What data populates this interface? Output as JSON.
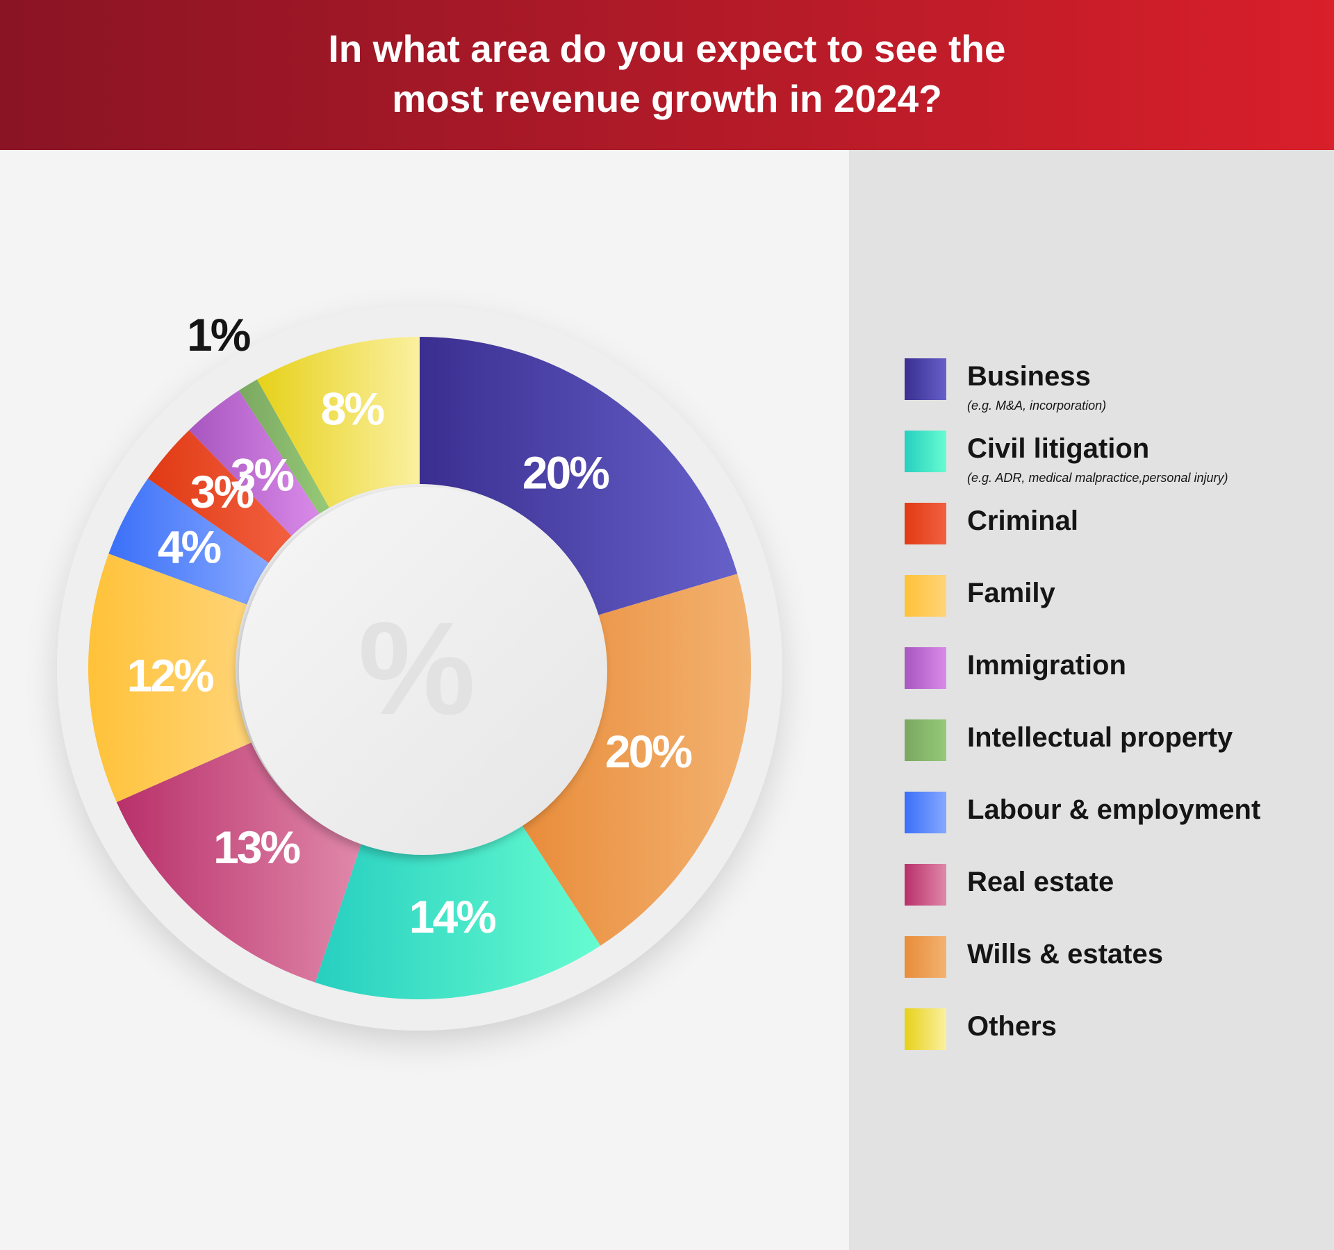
{
  "header": {
    "title_line1": "In what area do you expect to see the",
    "title_line2": "most revenue growth in 2024?"
  },
  "center_symbol": "%",
  "chart_data": {
    "type": "pie",
    "donut": true,
    "title": "In what area do you expect to see the most revenue growth in 2024?",
    "legend_position": "right",
    "slices": [
      {
        "name": "Business",
        "note": "(e.g. M&A, incorporation)",
        "value": 20,
        "label": "20%",
        "color_start": "#3a2e90",
        "color_end": "#6660c9",
        "label_color": "#ffffff"
      },
      {
        "name": "Wills & estates",
        "value": 20,
        "label": "20%",
        "color_start": "#e88c3a",
        "color_end": "#f3b270",
        "label_color": "#ffffff"
      },
      {
        "name": "Civil litigation",
        "note": "(e.g. ADR, medical malpractice,personal injury)",
        "value": 14,
        "label": "14%",
        "color_start": "#27cfc0",
        "color_end": "#66fcd0",
        "label_color": "#ffffff"
      },
      {
        "name": "Real estate",
        "value": 13,
        "label": "13%",
        "color_start": "#b8306a",
        "color_end": "#e088aa",
        "label_color": "#ffffff"
      },
      {
        "name": "Family",
        "value": 12,
        "label": "12%",
        "color_start": "#ffc238",
        "color_end": "#ffd478",
        "label_color": "#ffffff"
      },
      {
        "name": "Labour & employment",
        "value": 4,
        "label": "4%",
        "color_start": "#3a6ff8",
        "color_end": "#86a8ff",
        "label_color": "#ffffff"
      },
      {
        "name": "Criminal",
        "value": 3,
        "label": "3%",
        "color_start": "#e03a14",
        "color_end": "#f26040",
        "label_color": "#ffffff"
      },
      {
        "name": "Immigration",
        "value": 3,
        "label": "3%",
        "color_start": "#a856c0",
        "color_end": "#d98ae8",
        "label_color": "#ffffff"
      },
      {
        "name": "Intellectual property",
        "value": 1,
        "label": "1%",
        "color_start": "#7aa860",
        "color_end": "#96c978",
        "label_color": "#151515"
      },
      {
        "name": "Others",
        "value": 8,
        "label": "8%",
        "color_start": "#e6d11a",
        "color_end": "#fbf0a0",
        "label_color": "#ffffff"
      }
    ]
  },
  "legend": {
    "items": [
      {
        "label": "Business",
        "note": "(e.g. M&A, incorporation)",
        "color_start": "#3a2e90",
        "color_end": "#6660c9"
      },
      {
        "label": "Civil litigation",
        "note": "(e.g. ADR, medical malpractice,personal injury)",
        "color_start": "#27cfc0",
        "color_end": "#66fcd0"
      },
      {
        "label": "Criminal",
        "color_start": "#e03a14",
        "color_end": "#f26040"
      },
      {
        "label": "Family",
        "color_start": "#ffc238",
        "color_end": "#ffd478"
      },
      {
        "label": "Immigration",
        "color_start": "#a856c0",
        "color_end": "#d98ae8"
      },
      {
        "label": "Intellectual property",
        "color_start": "#7aa860",
        "color_end": "#96c978"
      },
      {
        "label": "Labour & employment",
        "color_start": "#3a6ff8",
        "color_end": "#86a8ff"
      },
      {
        "label": "Real estate",
        "color_start": "#b8306a",
        "color_end": "#e088aa"
      },
      {
        "label": "Wills & estates",
        "color_start": "#e88c3a",
        "color_end": "#f3b270"
      },
      {
        "label": "Others",
        "color_start": "#e6d11a",
        "color_end": "#fbf0a0"
      }
    ]
  }
}
